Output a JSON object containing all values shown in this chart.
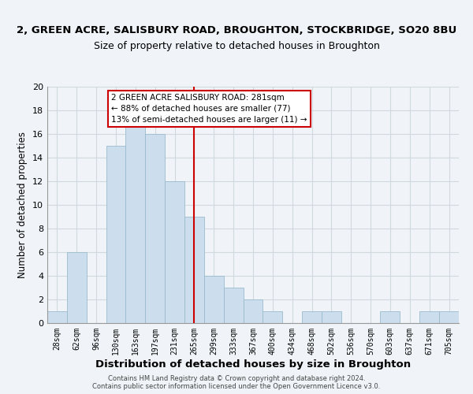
{
  "title": "2, GREEN ACRE, SALISBURY ROAD, BROUGHTON, STOCKBRIDGE, SO20 8BU",
  "subtitle": "Size of property relative to detached houses in Broughton",
  "xlabel": "Distribution of detached houses by size in Broughton",
  "ylabel": "Number of detached properties",
  "bar_color": "#ccdded",
  "bar_edge_color": "#99bbcc",
  "grid_color": "#d0d8e0",
  "vline_x": 281,
  "vline_color": "#cc0000",
  "annotation_text": "2 GREEN ACRE SALISBURY ROAD: 281sqm\n← 88% of detached houses are smaller (77)\n13% of semi-detached houses are larger (11) →",
  "annotation_box_color": "#ffffff",
  "annotation_box_edge": "#cc0000",
  "footer_text": "Contains HM Land Registry data © Crown copyright and database right 2024.\nContains public sector information licensed under the Open Government Licence v3.0.",
  "bins_left_edges": [
    28,
    62,
    96,
    130,
    163,
    197,
    231,
    265,
    299,
    333,
    367,
    400,
    434,
    468,
    502,
    536,
    570,
    603,
    637,
    671,
    705
  ],
  "bin_counts": [
    1,
    6,
    0,
    15,
    17,
    16,
    12,
    9,
    4,
    3,
    2,
    1,
    0,
    1,
    1,
    0,
    0,
    1,
    0,
    1,
    1
  ],
  "ylim": [
    0,
    20
  ],
  "xlim": [
    28,
    739
  ],
  "bg_color": "#f0f4f8",
  "title_fontsize": 9.5,
  "subtitle_fontsize": 9,
  "xlabel_fontsize": 9.5,
  "ylabel_fontsize": 8.5,
  "annot_fontsize": 7.5,
  "footer_fontsize": 6,
  "tick_fontsize": 7,
  "ytick_fontsize": 8
}
